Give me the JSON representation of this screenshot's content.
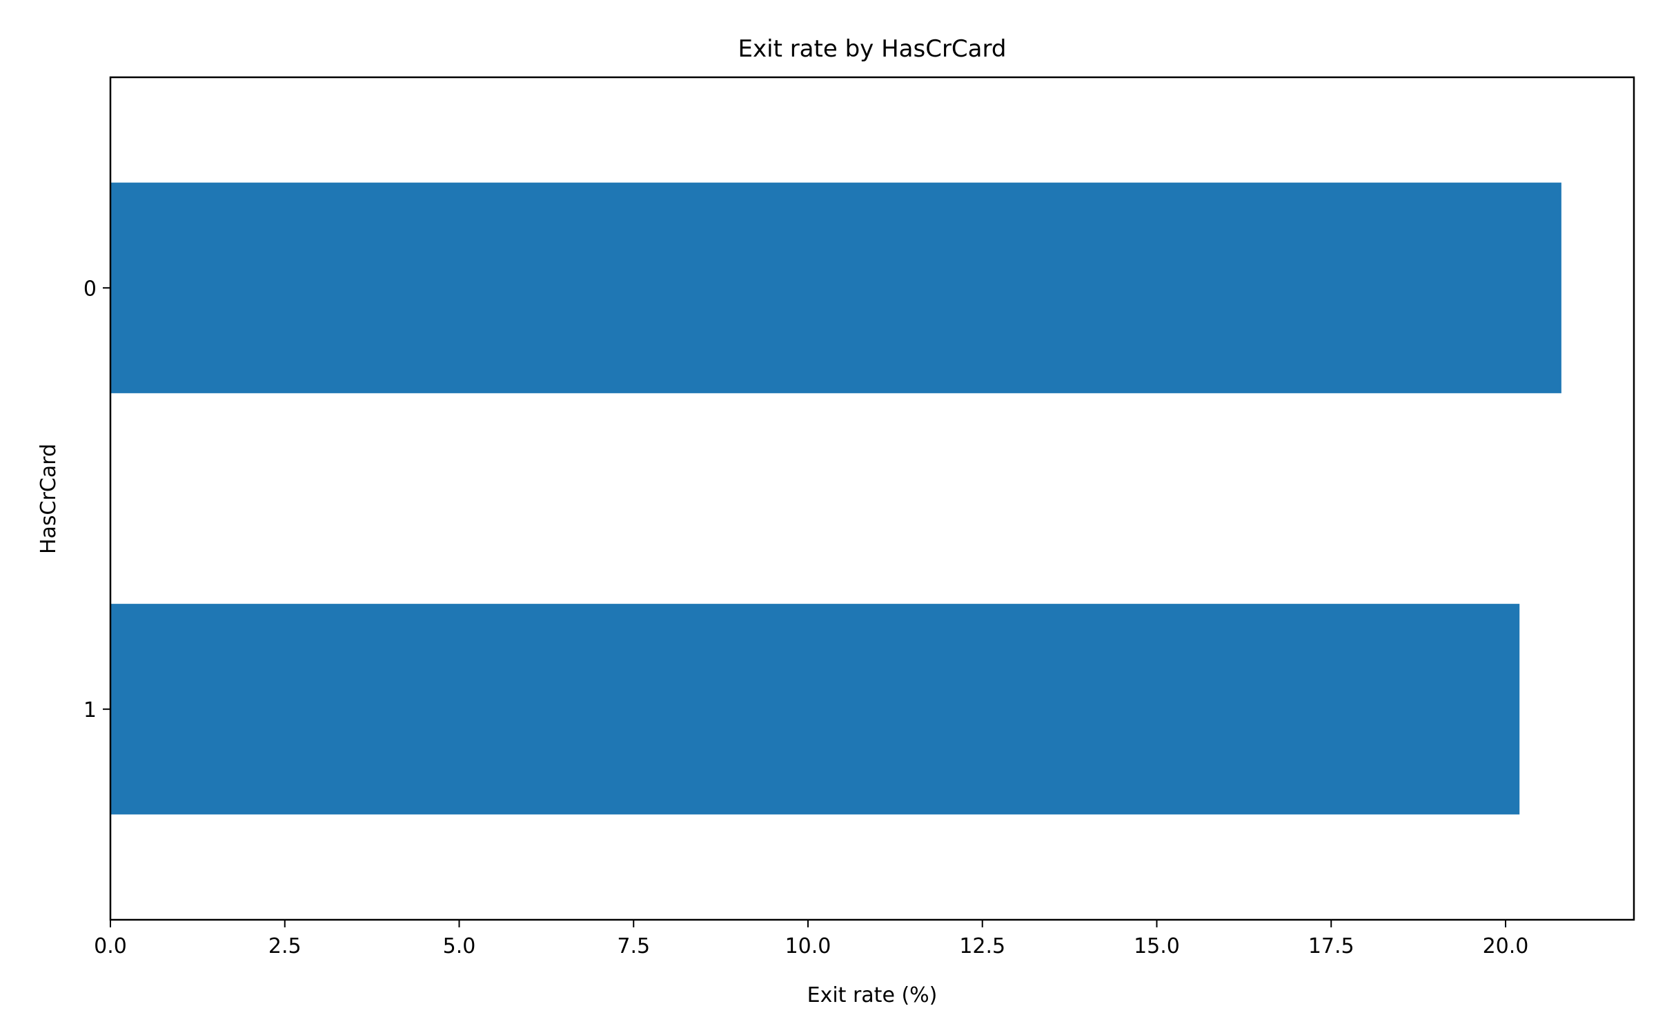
{
  "chart_data": {
    "type": "bar",
    "orientation": "horizontal",
    "title": "Exit rate by HasCrCard",
    "xlabel": "Exit rate (%)",
    "ylabel": "HasCrCard",
    "categories": [
      "0",
      "1"
    ],
    "values": [
      20.8,
      20.2
    ],
    "xlim": [
      0,
      21.84
    ],
    "xticks": [
      0.0,
      2.5,
      5.0,
      7.5,
      10.0,
      12.5,
      15.0,
      17.5,
      20.0
    ],
    "xtick_labels": [
      "0.0",
      "2.5",
      "5.0",
      "7.5",
      "10.0",
      "12.5",
      "15.0",
      "17.5",
      "20.0"
    ],
    "grid": false,
    "legend": "none",
    "bar_color": "#1f77b4"
  }
}
